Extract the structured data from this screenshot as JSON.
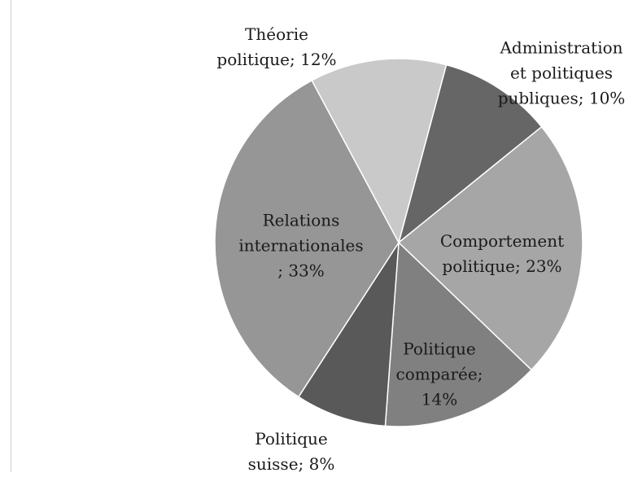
{
  "chart_data": {
    "type": "pie",
    "values": [
      10,
      23,
      14,
      8,
      33,
      12
    ],
    "value_labels": [
      "Administration et politiques publiques; 10%",
      "Comportement politique; 23%",
      "Politique comparée; 14%",
      "Politique suisse; 8%",
      "Relations internationales ; 33%",
      "Théorie politique; 12%"
    ],
    "colors": [
      "#666666",
      "#a6a6a6",
      "#808080",
      "#595959",
      "#969696",
      "#c9c9c9"
    ]
  }
}
